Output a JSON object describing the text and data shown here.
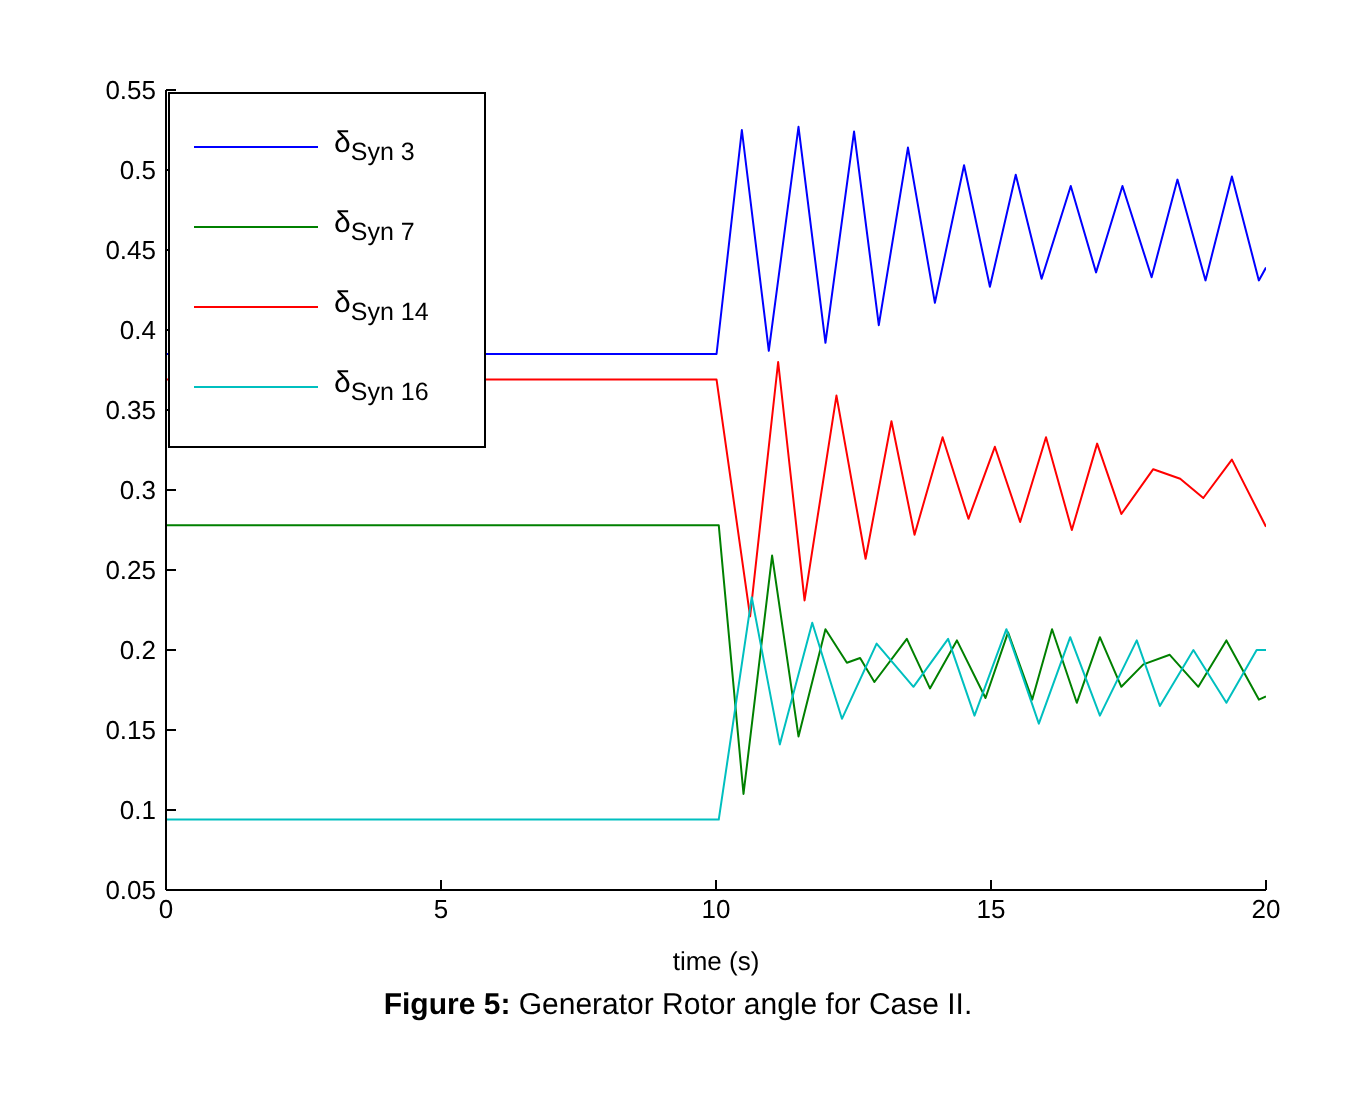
{
  "chart_data": {
    "type": "line",
    "title": "Figure 5: Generator Rotor angle for Case II.",
    "xlabel": "time (s)",
    "xlim": [
      0,
      20
    ],
    "xticks": [
      0,
      5,
      10,
      15,
      20
    ],
    "ylim": [
      0.05,
      0.55
    ],
    "yticks": [
      0.05,
      0.1,
      0.15,
      0.2,
      0.25,
      0.3,
      0.35,
      0.4,
      0.45,
      0.5,
      0.55
    ],
    "grid": false,
    "legend": "top left",
    "marker": "none",
    "line_style": "solid",
    "series": [
      {
        "name": "δ$_{Syn 3}$",
        "color": "#0000ff",
        "x": [
          0,
          10.01,
          10.47,
          10.96,
          11.5,
          11.99,
          12.51,
          12.96,
          13.49,
          13.98,
          14.51,
          14.98,
          15.45,
          15.92,
          16.45,
          16.91,
          17.39,
          17.92,
          18.39,
          18.9,
          19.38,
          19.87,
          20
        ],
        "values": [
          0.385,
          0.385,
          0.525,
          0.387,
          0.527,
          0.392,
          0.524,
          0.403,
          0.514,
          0.417,
          0.503,
          0.427,
          0.497,
          0.432,
          0.49,
          0.436,
          0.49,
          0.433,
          0.494,
          0.431,
          0.496,
          0.431,
          0.439
        ]
      },
      {
        "name": "δ$_{Syn 7}$",
        "color": "#008000",
        "x": [
          0,
          10.05,
          10.5,
          11.02,
          11.5,
          11.99,
          12.38,
          12.62,
          12.88,
          13.47,
          13.89,
          14.38,
          14.9,
          15.31,
          15.75,
          16.11,
          16.56,
          16.98,
          17.37,
          17.77,
          18.25,
          18.77,
          19.28,
          19.87,
          20
        ],
        "values": [
          0.278,
          0.278,
          0.11,
          0.259,
          0.146,
          0.213,
          0.192,
          0.195,
          0.18,
          0.207,
          0.176,
          0.206,
          0.17,
          0.211,
          0.169,
          0.213,
          0.167,
          0.208,
          0.177,
          0.191,
          0.197,
          0.177,
          0.206,
          0.169,
          0.171
        ]
      },
      {
        "name": "δ$_{Syn 14}$",
        "color": "#ff0000",
        "x": [
          0,
          10.01,
          10.62,
          11.13,
          11.61,
          12.19,
          12.72,
          13.19,
          13.61,
          14.12,
          14.59,
          15.07,
          15.53,
          16,
          16.47,
          16.93,
          17.37,
          17.95,
          18.44,
          18.86,
          19.38,
          20
        ],
        "values": [
          0.369,
          0.369,
          0.221,
          0.38,
          0.231,
          0.359,
          0.257,
          0.343,
          0.272,
          0.333,
          0.282,
          0.327,
          0.28,
          0.333,
          0.275,
          0.329,
          0.285,
          0.313,
          0.307,
          0.295,
          0.319,
          0.277
        ]
      },
      {
        "name": "δ$_{Syn 16}$",
        "color": "#00bfbf",
        "x": [
          0,
          10.05,
          10.65,
          11.16,
          11.75,
          12.29,
          12.92,
          13.59,
          14.22,
          14.7,
          15.28,
          15.87,
          16.44,
          16.98,
          17.65,
          18.07,
          18.68,
          19.28,
          19.83,
          20
        ],
        "values": [
          0.094,
          0.094,
          0.233,
          0.141,
          0.217,
          0.157,
          0.204,
          0.177,
          0.207,
          0.159,
          0.213,
          0.154,
          0.208,
          0.159,
          0.206,
          0.165,
          0.2,
          0.167,
          0.2,
          0.2
        ]
      }
    ]
  }
}
